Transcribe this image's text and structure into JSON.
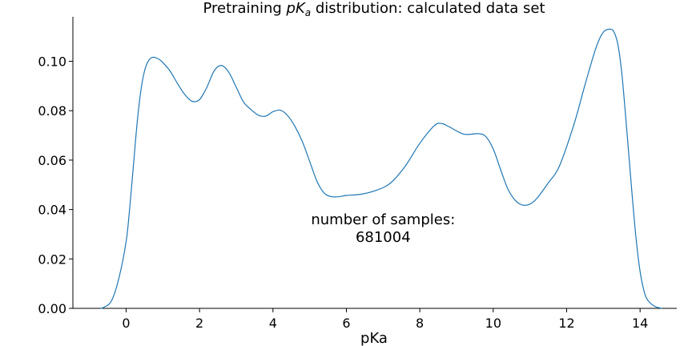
{
  "chart_data": {
    "type": "line",
    "title": "Pretraining pKa distribution: calculated data set",
    "title_parts": {
      "before": "Pretraining ",
      "p": "p",
      "K": "K",
      "sub": "a",
      "after": " distribution: calculated data set"
    },
    "xlabel": "pKa",
    "ylabel": "",
    "xlim": [
      -1.45,
      15.0
    ],
    "ylim": [
      0,
      0.118
    ],
    "x_ticks": [
      0,
      2,
      4,
      6,
      8,
      10,
      12,
      14
    ],
    "x_tick_labels": [
      "0",
      "2",
      "4",
      "6",
      "8",
      "10",
      "12",
      "14"
    ],
    "y_ticks": [
      0.0,
      0.02,
      0.04,
      0.06,
      0.08,
      0.1
    ],
    "y_tick_labels": [
      "0.00",
      "0.02",
      "0.04",
      "0.06",
      "0.08",
      "0.10"
    ],
    "grid": false,
    "line_color": "#1f77b4",
    "annotation": {
      "line1": "number of samples:",
      "line2": "681004",
      "x": 7.0,
      "y": 0.033
    },
    "series": [
      {
        "x": [
          -0.7,
          -0.6,
          -0.4,
          -0.2,
          0.0,
          0.1,
          0.2,
          0.3,
          0.4,
          0.5,
          0.6,
          0.7,
          0.8,
          0.9,
          1.0,
          1.2,
          1.4,
          1.6,
          1.8,
          2.0,
          2.2,
          2.4,
          2.6,
          2.8,
          3.0,
          3.2,
          3.4,
          3.6,
          3.8,
          4.0,
          4.2,
          4.4,
          4.6,
          4.8,
          5.0,
          5.2,
          5.4,
          5.6,
          5.8,
          6.0,
          6.4,
          6.8,
          7.2,
          7.6,
          8.0,
          8.4,
          8.6,
          8.8,
          9.2,
          9.6,
          9.8,
          10.0,
          10.2,
          10.4,
          10.6,
          10.8,
          11.0,
          11.2,
          11.5,
          11.8,
          12.2,
          12.5,
          12.8,
          13.0,
          13.2,
          13.3,
          13.4,
          13.5,
          13.6,
          13.7,
          13.8,
          13.9,
          14.0,
          14.1,
          14.2,
          14.4,
          14.6
        ],
        "y": [
          0.0,
          0.0005,
          0.003,
          0.012,
          0.027,
          0.041,
          0.058,
          0.075,
          0.088,
          0.096,
          0.1,
          0.1015,
          0.1015,
          0.1008,
          0.0995,
          0.096,
          0.091,
          0.0865,
          0.0838,
          0.0845,
          0.0895,
          0.0962,
          0.0983,
          0.0955,
          0.0895,
          0.0835,
          0.0805,
          0.0782,
          0.0778,
          0.0796,
          0.0802,
          0.078,
          0.0736,
          0.0675,
          0.0595,
          0.0514,
          0.0466,
          0.0452,
          0.0452,
          0.0457,
          0.0462,
          0.0477,
          0.0507,
          0.0575,
          0.0668,
          0.074,
          0.0748,
          0.0735,
          0.0705,
          0.0707,
          0.0695,
          0.0645,
          0.0562,
          0.0483,
          0.0437,
          0.0418,
          0.0422,
          0.0447,
          0.0508,
          0.0575,
          0.0745,
          0.0905,
          0.1055,
          0.1118,
          0.113,
          0.1115,
          0.1065,
          0.0955,
          0.079,
          0.061,
          0.043,
          0.027,
          0.015,
          0.0075,
          0.0035,
          0.0008,
          0.0
        ]
      }
    ]
  }
}
